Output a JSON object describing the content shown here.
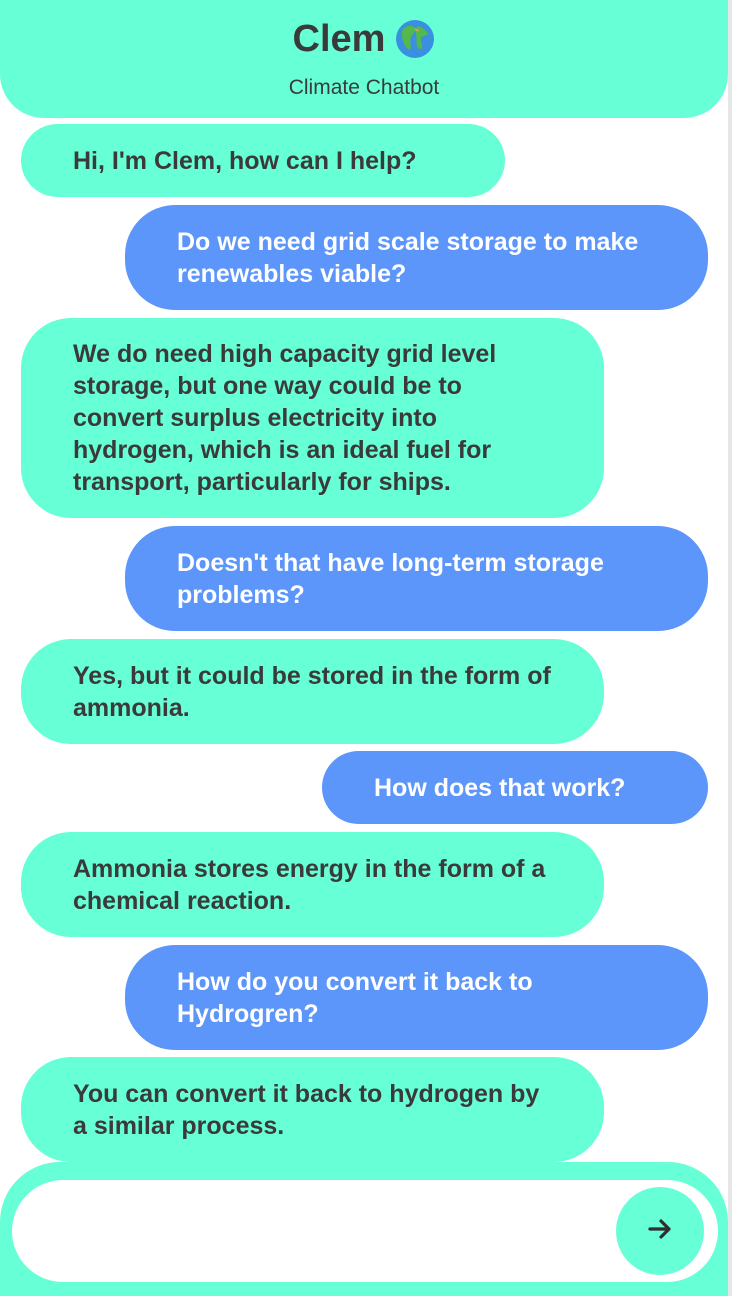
{
  "header": {
    "title": "Clem",
    "subtitle": "Climate Chatbot",
    "title_icon": "globe-icon"
  },
  "messages": [
    {
      "from": "bot",
      "text": "Hi, I'm Clem, how can I help?"
    },
    {
      "from": "user",
      "text": "Do we need grid scale storage to make renewables viable?"
    },
    {
      "from": "bot",
      "text": "We do need high capacity grid level storage, but one way could be to convert surplus electricity into hydrogen, which is an ideal fuel for transport, particularly for ships."
    },
    {
      "from": "user",
      "text": "Doesn't that have long-term storage problems?"
    },
    {
      "from": "bot",
      "text": "Yes, but it could be stored in the form of ammonia."
    },
    {
      "from": "user",
      "text": "How does that work?"
    },
    {
      "from": "bot",
      "text": "Ammonia stores energy in the form of a chemical reaction."
    },
    {
      "from": "user",
      "text": "How do you convert it back to Hydrogren?"
    },
    {
      "from": "bot",
      "text": "You can convert it back to hydrogen by a similar process."
    }
  ],
  "composer": {
    "value": "",
    "placeholder": "",
    "send_icon": "arrow-right-icon"
  },
  "colors": {
    "bot_bubble": "#66ffd6",
    "user_bubble": "#5c96fb",
    "text_dark": "#3a3a3a",
    "text_light": "#ffffff"
  }
}
